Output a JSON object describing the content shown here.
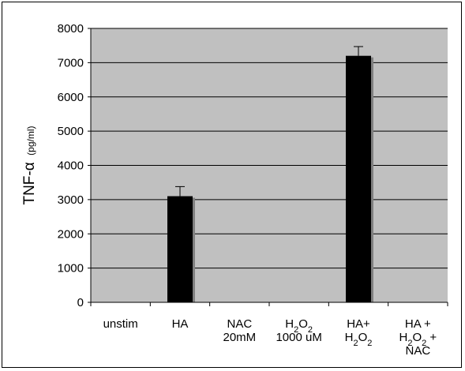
{
  "chart_data": {
    "type": "bar",
    "title": "",
    "xlabel": "",
    "ylabel": {
      "main": "TNF-α",
      "unit": "(pg/ml)"
    },
    "ylim": [
      0,
      8000
    ],
    "yticks": [
      0,
      1000,
      2000,
      3000,
      4000,
      5000,
      6000,
      7000,
      8000
    ],
    "grid": true,
    "legend": "none",
    "categories": [
      {
        "lines": [
          [
            {
              "t": "unstim"
            }
          ]
        ]
      },
      {
        "lines": [
          [
            {
              "t": "HA"
            }
          ]
        ]
      },
      {
        "lines": [
          [
            {
              "t": "NAC"
            }
          ],
          [
            {
              "t": "20mM"
            }
          ]
        ]
      },
      {
        "lines": [
          [
            {
              "t": "H"
            },
            {
              "t": "2",
              "sub": true
            },
            {
              "t": "O"
            },
            {
              "t": "2",
              "sub": true
            }
          ],
          [
            {
              "t": "1000 uM"
            }
          ]
        ]
      },
      {
        "lines": [
          [
            {
              "t": "HA+"
            }
          ],
          [
            {
              "t": "H"
            },
            {
              "t": "2",
              "sub": true
            },
            {
              "t": "O"
            },
            {
              "t": "2",
              "sub": true
            }
          ]
        ]
      },
      {
        "lines": [
          [
            {
              "t": "HA +"
            }
          ],
          [
            {
              "t": "H"
            },
            {
              "t": "2",
              "sub": true
            },
            {
              "t": "O"
            },
            {
              "t": "2",
              "sub": true
            },
            {
              "t": " +"
            }
          ],
          [
            {
              "t": "NAC"
            }
          ]
        ]
      }
    ],
    "values": [
      0,
      3100,
      0,
      0,
      7200,
      10
    ],
    "errors": [
      0,
      280,
      0,
      0,
      270,
      0
    ],
    "colors": {
      "plot_bg": "#c0c0c0",
      "bar": "#000000",
      "bar_shadow": "#808080",
      "grid": "#000000"
    }
  }
}
